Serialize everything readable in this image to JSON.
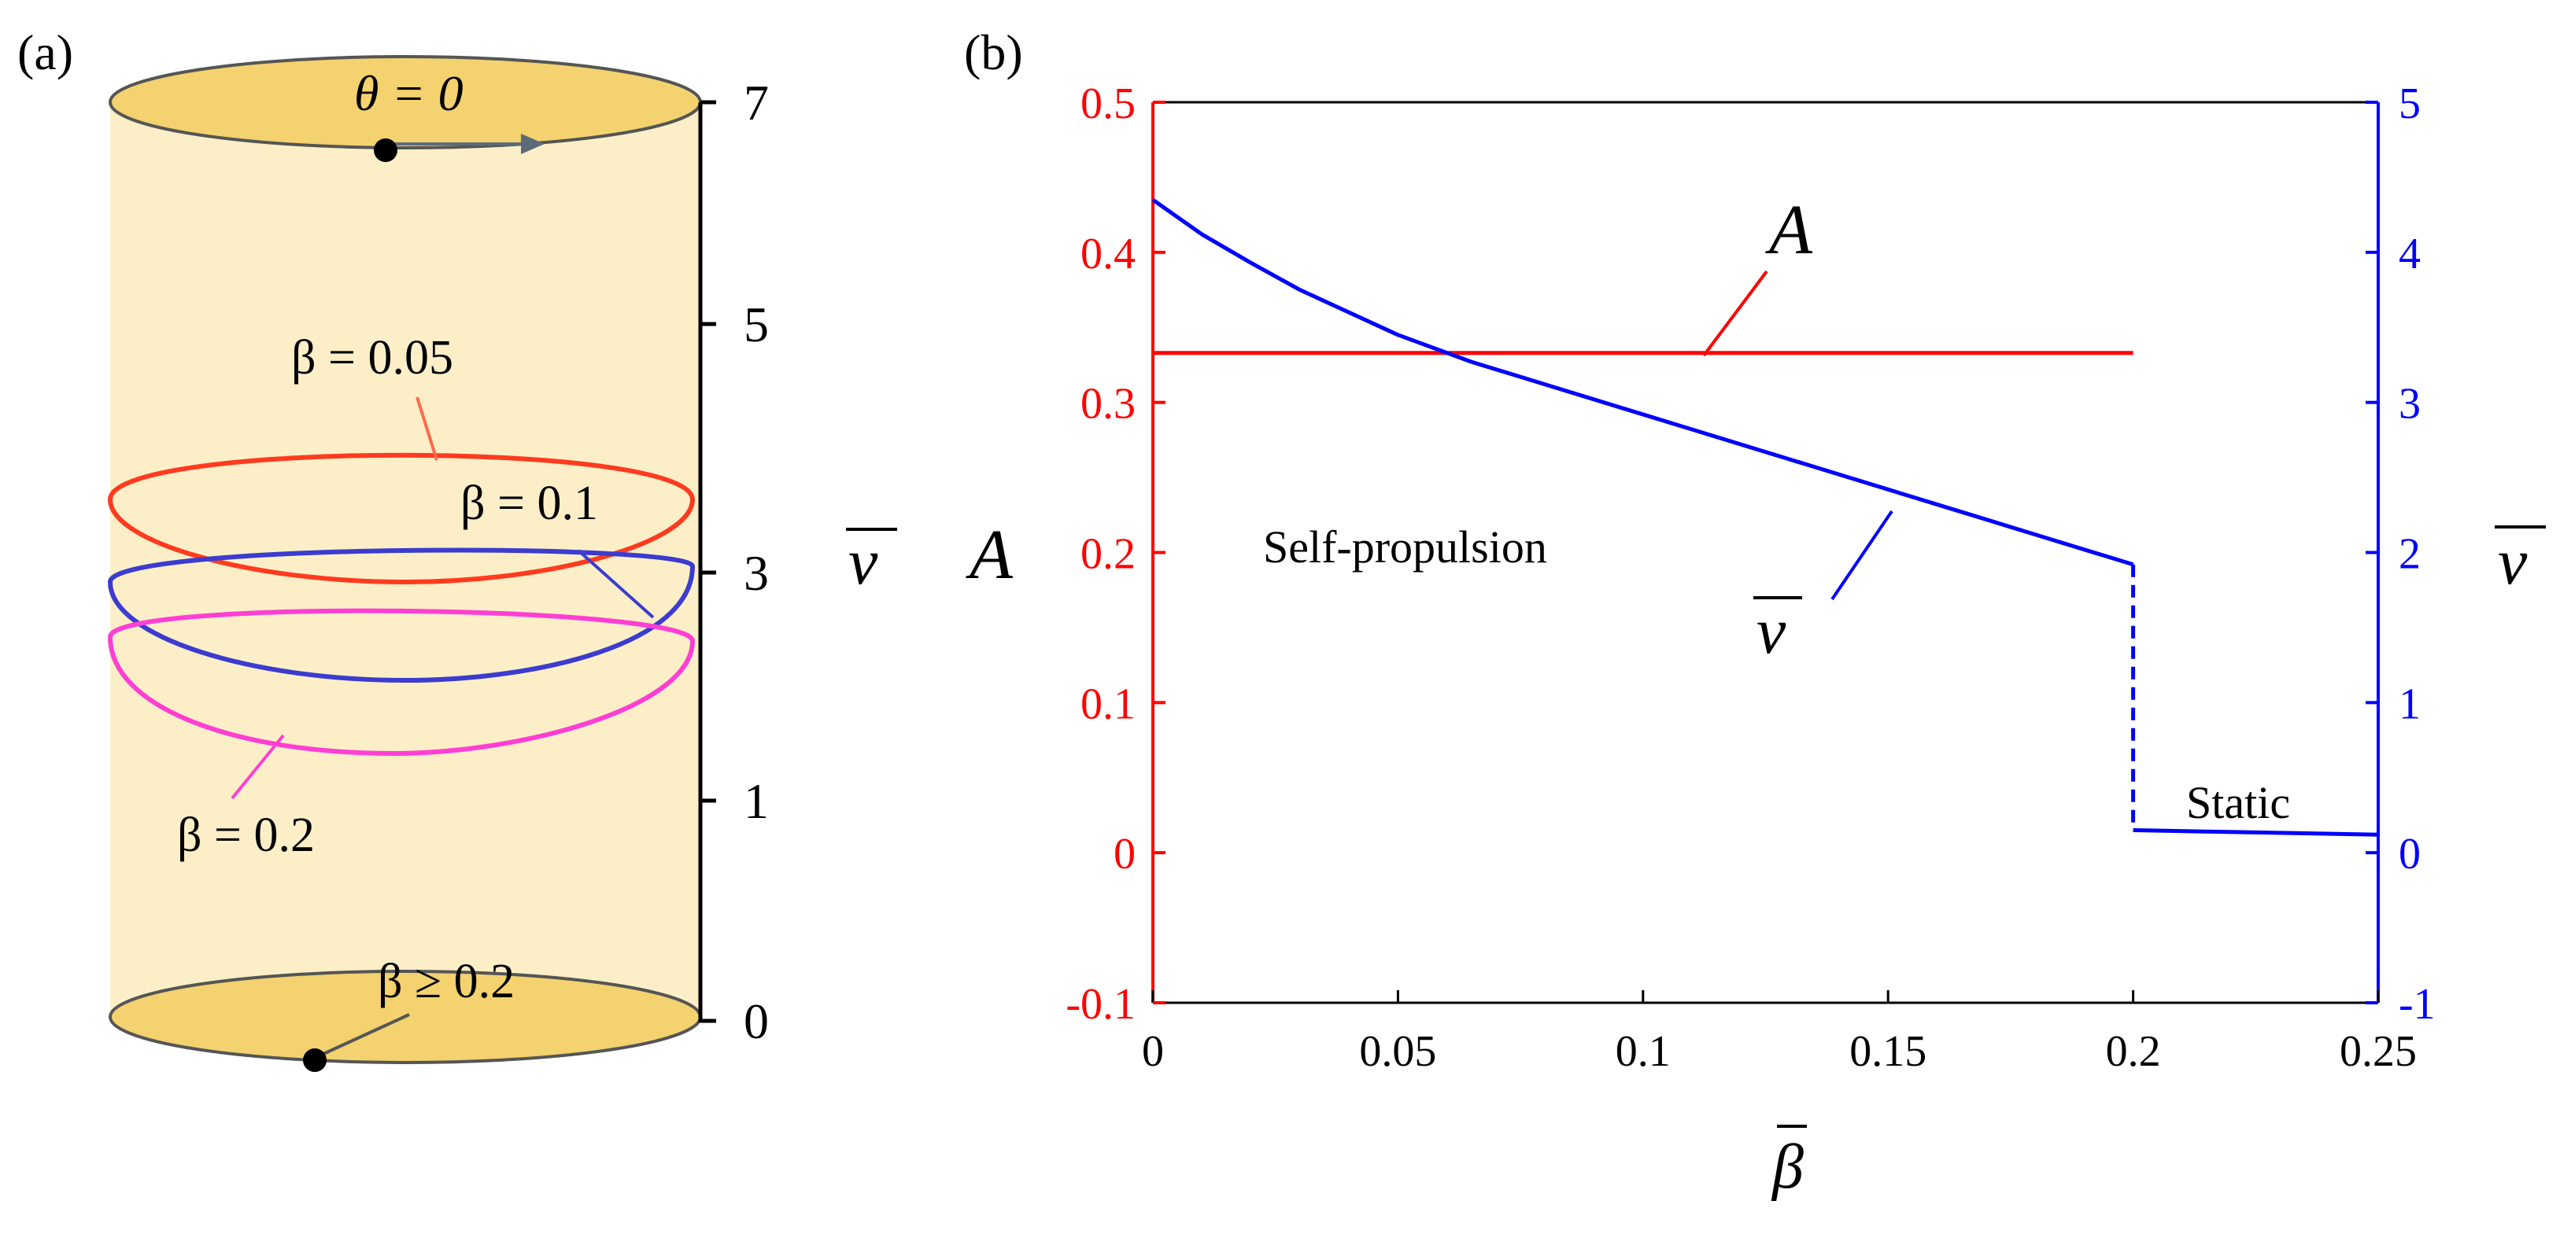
{
  "panel_a": {
    "label": "(a)",
    "top_label": "θ = 0",
    "axis_label": "v",
    "ticks": [
      "7",
      "5",
      "3",
      "1",
      "0"
    ],
    "loop_labels": [
      "β = 0.05",
      "β = 0.1",
      "β = 0.2"
    ],
    "bottom_label": "β ≥ 0.2",
    "colors": {
      "cylinder": "#fcefc8",
      "cap": "#f3d26f",
      "b005": "#ff3b1f",
      "b01": "#3c3cd0",
      "b02": "#ff3fd4"
    }
  },
  "panel_b": {
    "label": "(b)",
    "annotations": [
      "Self-propulsion",
      "Static"
    ],
    "curve_labels": {
      "A": "A",
      "v": "v"
    }
  },
  "chart_data": {
    "type": "line",
    "xlabel": "β",
    "ylabel": "A",
    "y2label": "v",
    "xlim": [
      0,
      0.25
    ],
    "ylim": [
      -0.1,
      0.5
    ],
    "y2lim": [
      -1,
      5
    ],
    "xticks": [
      "0",
      "0.05",
      "0.1",
      "0.15",
      "0.2",
      "0.25"
    ],
    "yticks": [
      "-0.1",
      "0",
      "0.1",
      "0.2",
      "0.3",
      "0.4",
      "0.5"
    ],
    "y2ticks": [
      "-1",
      "0",
      "1",
      "2",
      "3",
      "4",
      "5"
    ],
    "series": [
      {
        "name": "A",
        "axis": "left",
        "color": "#ff0000",
        "x": [
          0,
          0.2
        ],
        "y": [
          0.333,
          0.333
        ]
      },
      {
        "name": "v",
        "axis": "right",
        "color": "#0000ff",
        "x": [
          0,
          0.01,
          0.02,
          0.03,
          0.04,
          0.05,
          0.065,
          0.08,
          0.1,
          0.12,
          0.14,
          0.16,
          0.18,
          0.2
        ],
        "y": [
          4.35,
          4.12,
          3.93,
          3.75,
          3.6,
          3.45,
          3.27,
          3.12,
          2.92,
          2.72,
          2.52,
          2.32,
          2.12,
          1.92
        ]
      },
      {
        "name": "v (static)",
        "axis": "right",
        "color": "#0000ff",
        "x": [
          0.2,
          0.25
        ],
        "y": [
          0.15,
          0.12
        ]
      }
    ],
    "transition": {
      "x": 0.2,
      "from": 1.92,
      "to": 0.15,
      "style": "dashed",
      "color": "#0000ff"
    }
  }
}
